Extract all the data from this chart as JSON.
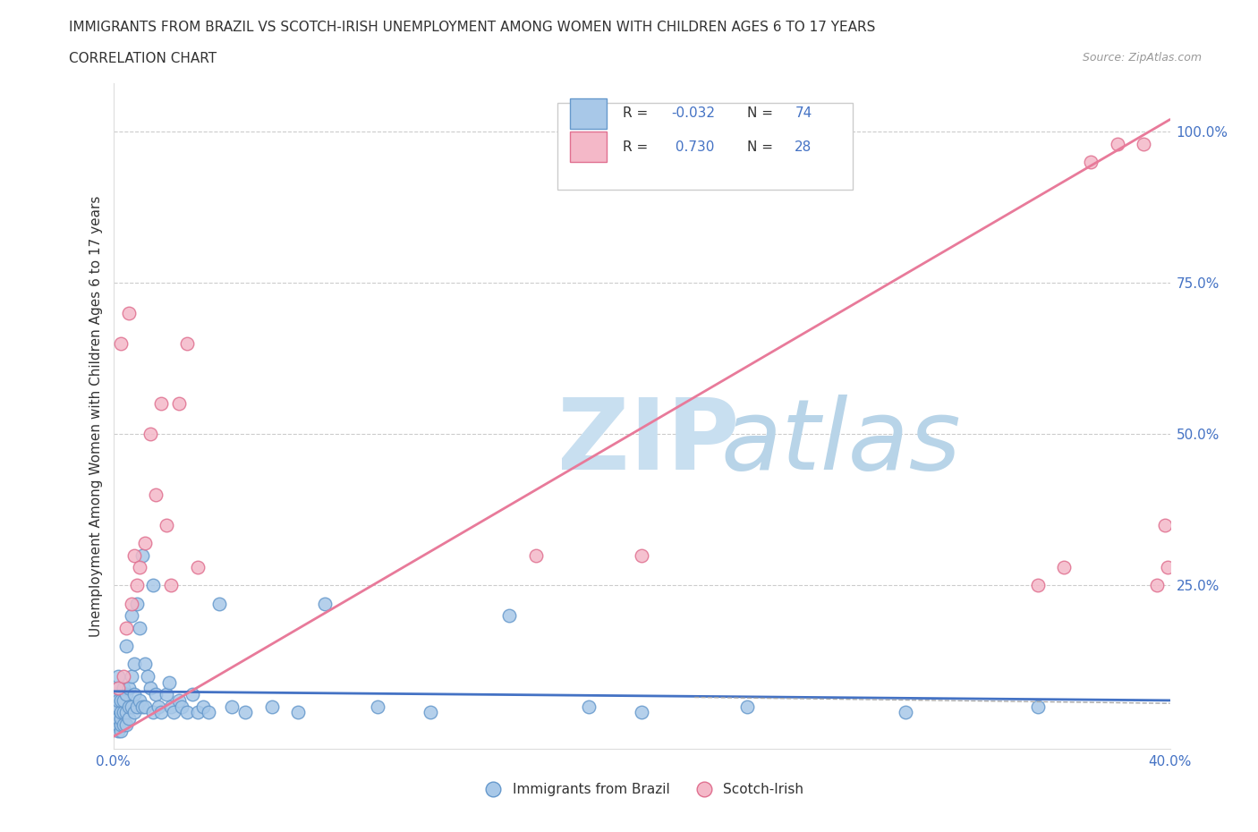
{
  "title1": "IMMIGRANTS FROM BRAZIL VS SCOTCH-IRISH UNEMPLOYMENT AMONG WOMEN WITH CHILDREN AGES 6 TO 17 YEARS",
  "title2": "CORRELATION CHART",
  "source": "Source: ZipAtlas.com",
  "ylabel": "Unemployment Among Women with Children Ages 6 to 17 years",
  "xlim": [
    0.0,
    0.4
  ],
  "ylim": [
    -0.02,
    1.08
  ],
  "brazil_color": "#a8c8e8",
  "brazil_edge": "#6699cc",
  "scotch_color": "#f4b8c8",
  "scotch_edge": "#e07090",
  "brazil_line_color": "#4472c4",
  "scotch_line_color": "#e87a9a",
  "watermark_zip_color": "#c8dff0",
  "watermark_atlas_color": "#b8d4e8",
  "legend_label1": "Immigrants from Brazil",
  "legend_label2": "Scotch-Irish",
  "brazil_x": [
    0.001,
    0.001,
    0.001,
    0.001,
    0.001,
    0.002,
    0.002,
    0.002,
    0.002,
    0.002,
    0.002,
    0.002,
    0.003,
    0.003,
    0.003,
    0.003,
    0.003,
    0.004,
    0.004,
    0.004,
    0.004,
    0.005,
    0.005,
    0.005,
    0.005,
    0.006,
    0.006,
    0.006,
    0.007,
    0.007,
    0.007,
    0.008,
    0.008,
    0.008,
    0.009,
    0.009,
    0.01,
    0.01,
    0.011,
    0.011,
    0.012,
    0.012,
    0.013,
    0.014,
    0.015,
    0.015,
    0.016,
    0.017,
    0.018,
    0.02,
    0.021,
    0.022,
    0.023,
    0.025,
    0.026,
    0.028,
    0.03,
    0.032,
    0.034,
    0.036,
    0.04,
    0.045,
    0.05,
    0.06,
    0.07,
    0.08,
    0.1,
    0.12,
    0.15,
    0.18,
    0.2,
    0.24,
    0.3,
    0.35
  ],
  "brazil_y": [
    0.02,
    0.03,
    0.04,
    0.05,
    0.07,
    0.01,
    0.02,
    0.03,
    0.05,
    0.06,
    0.08,
    0.1,
    0.01,
    0.02,
    0.03,
    0.04,
    0.06,
    0.02,
    0.04,
    0.06,
    0.08,
    0.02,
    0.04,
    0.07,
    0.15,
    0.03,
    0.05,
    0.08,
    0.05,
    0.1,
    0.2,
    0.04,
    0.07,
    0.12,
    0.05,
    0.22,
    0.06,
    0.18,
    0.05,
    0.3,
    0.05,
    0.12,
    0.1,
    0.08,
    0.04,
    0.25,
    0.07,
    0.05,
    0.04,
    0.07,
    0.09,
    0.05,
    0.04,
    0.06,
    0.05,
    0.04,
    0.07,
    0.04,
    0.05,
    0.04,
    0.22,
    0.05,
    0.04,
    0.05,
    0.04,
    0.22,
    0.05,
    0.04,
    0.2,
    0.05,
    0.04,
    0.05,
    0.04,
    0.05
  ],
  "scotch_x": [
    0.002,
    0.003,
    0.004,
    0.005,
    0.006,
    0.007,
    0.008,
    0.009,
    0.01,
    0.012,
    0.014,
    0.016,
    0.018,
    0.02,
    0.022,
    0.025,
    0.028,
    0.032,
    0.16,
    0.2,
    0.35,
    0.36,
    0.37,
    0.38,
    0.39,
    0.395,
    0.398,
    0.399
  ],
  "scotch_y": [
    0.08,
    0.65,
    0.1,
    0.18,
    0.7,
    0.22,
    0.3,
    0.25,
    0.28,
    0.32,
    0.5,
    0.4,
    0.55,
    0.35,
    0.25,
    0.55,
    0.65,
    0.28,
    0.3,
    0.3,
    0.25,
    0.28,
    0.95,
    0.98,
    0.98,
    0.25,
    0.35,
    0.28
  ],
  "brazil_line_x0": 0.0,
  "brazil_line_x1": 0.4,
  "brazil_line_y0": 0.075,
  "brazil_line_y1": 0.06,
  "scotch_line_x0": 0.0,
  "scotch_line_x1": 0.4,
  "scotch_line_y0": 0.0,
  "scotch_line_y1": 1.02
}
